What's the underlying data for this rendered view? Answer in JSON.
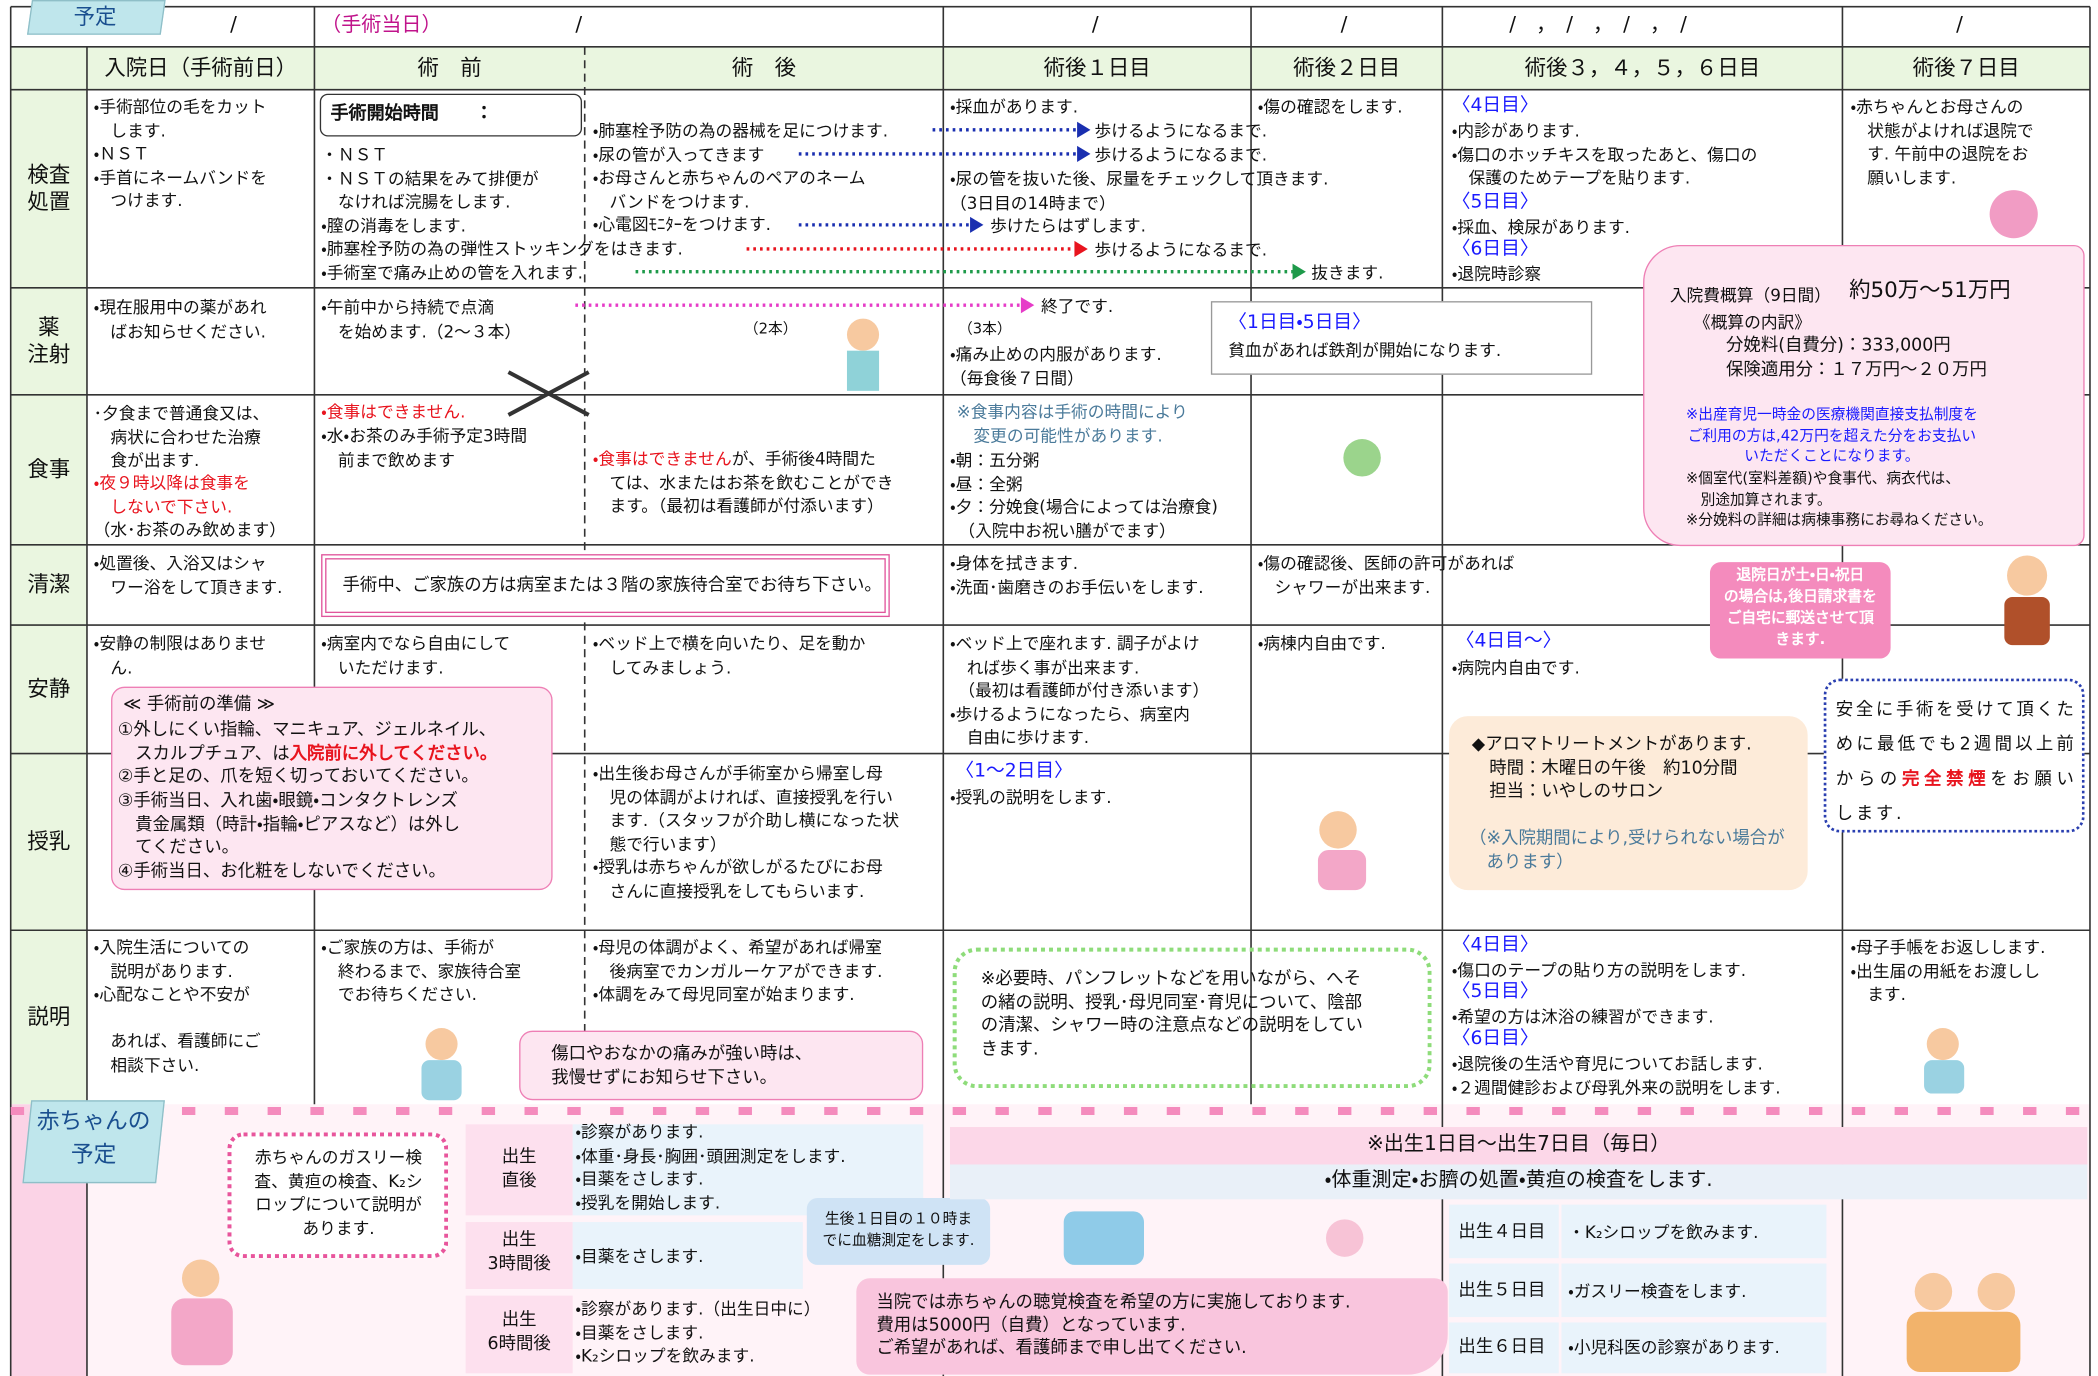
{
  "header": {
    "plan_tag": "予定",
    "dates": [
      "/",
      "（手術当日）",
      "/",
      "/",
      "/",
      "/　，　/　，　/　，　/",
      "/"
    ],
    "columns": [
      "入院日（手術前日）",
      "術　前",
      "術　後",
      "術後１日目",
      "術後２日目",
      "術後３，４，５，６日目",
      "術後７日目"
    ]
  },
  "rows": [
    "検査\n処置",
    "薬\n注射",
    "食事",
    "清潔",
    "安静",
    "授乳",
    "説明"
  ],
  "exam": [
    "・手術部位の毛をカット\n　します.\n・ＮＳＴ\n・手首にネームバンドを\n　つけます.",
    "手術開始時間　　：",
    "・ＮＳＴ\n・ＮＳＴの結果をみて排便が\n　なければ浣腸をします.\n・膣の消毒をします.\n・肺塞栓予防の為の弾性ストッキングをはきます.\n・手術室で痛み止めの管を入れます.",
    "・肺塞栓予防の為の器械を足につけます.\n・尿の管が入ってきます\n・お母さんと赤ちゃんのペアのネーム\n　バンドをつけます.\n・心電図ﾓﾆﾀｰをつけます.",
    "・採血があります.",
    "・傷の確認をします.",
    "歩けるようになるまで.",
    "歩けるようになるまで.",
    "歩けたらはずします.",
    "歩けるようになるまで.",
    "抜きます.",
    "・尿の管を抜いた後、尿量をチェックして頂きます.\n（3日目の14時まで）",
    "〈4日目〉",
    "・内診があります.\n・傷口のホッチキスを取ったあと、傷口の\n　保護のためテープを貼ります.",
    "〈5日目〉",
    "・採血、検尿があります.",
    "〈6日目〉",
    "・退院時診察",
    "・赤ちゃんとお母さんの\n　状態がよければ退院で\n　す. 午前中の退院をお\n　願いします."
  ],
  "med": [
    "・現在服用中の薬があれ\n　ばお知らせください.",
    "・午前中から持続で点滴\n　を始めます.（2～３本）",
    "（2本）",
    "終了です.",
    "（3本）",
    "・痛み止めの内服があります.\n（毎食後７日間）",
    "〈1日目・5日目〉",
    "貧血があれば鉄剤が開始になります."
  ],
  "meal": [
    "･夕食まで普通食又は、\n　病状に合わせた治療\n　食が出ます.",
    "・夜９時以降は食事を\n　しないで下さい.",
    "（水･お茶のみ飲めます）",
    "・食事はできません.",
    "・水・お茶のみ手術予定3時間\n　前まで飲めます",
    "・食事はできません",
    "が、手術後4時間た\n　ては、水またはお茶を飲むことができ\n　ます。（最初は看護師が付添います）",
    "※食事内容は手術の時間により\n　変更の可能性があります.",
    "・朝：五分粥\n・昼：全粥\n・夕：分娩食(場合によっては治療食)\n　（入院中お祝い膳がでます）"
  ],
  "hygiene": [
    "・処置後、入浴又はシャ\n　ワー浴をして頂きます.",
    "手術中、ご家族の方は病室または３階の家族待合室でお待ち下さい。",
    "・身体を拭きます.\n・洗面･歯磨きのお手伝いをします.",
    "・傷の確認後、医師の許可があれば\n　シャワーが出来ます."
  ],
  "rest": [
    "・安静の制限はありませ\n　ん.",
    "・病室内でなら自由にして\n　いただけます.",
    "・ベッド上で横を向いたり、足を動か\n　してみましょう.",
    "・ベッド上で座れます. 調子がよけ\n　れば歩く事が出来ます.\n　（最初は看護師が付き添います）\n・歩けるようになったら、病室内\n　自由に歩けます.",
    "・病棟内自由です.",
    "〈4日目～〉",
    "・病院内自由です."
  ],
  "feeding": [
    "・出生後お母さんが手術室から帰室し母\n　児の体調がよければ、直接授乳を行い\n　ます.（スタッフが介助し横になった状\n　態で行います）\n・授乳は赤ちゃんが欲しがるたびにお母\n　さんに直接授乳をしてもらいます.",
    "〈1～2日目〉",
    "・授乳の説明をします."
  ],
  "explain": [
    "・入院生活についての\n　説明があります.\n・心配なことや不安が\n\n　あれば、看護師にご\n　相談下さい.",
    "・ご家族の方は、手術が\n　終わるまで、家族待合室\n　でお待ちください.",
    "・母児の体調がよく、希望があれば帰室\n　後病室でカンガルーケアができます.\n・体調をみて母児同室が始まります.",
    "傷口やおなかの痛みが強い時は、\n我慢せずにお知らせ下さい。",
    "※必要時、パンフレットなどを用いながら、へそ\nの緒の説明、授乳･母児同室･育児について、陰部\nの清潔、シャワー時の注意点などの説明をしてい\nきます.",
    "〈4日目〉",
    "・傷口のテープの貼り方の説明をします.",
    "〈5日目〉",
    "・希望の方は沐浴の練習ができます.",
    "〈6日目〉",
    "・退院後の生活や育児についてお話します.\n・２週間健診および母乳外来の説明をします.",
    "・母子手帳をお返しします.\n・出生届の用紙をお渡しし\n　ます."
  ],
  "prep_note": {
    "title": "≪ 手術前の準備 ≫",
    "items": [
      "①外しにくい指輪、マニキュア、ジェルネイル、\n　スカルプチュア、は",
      "②手と足の、爪を短く切っておいてください。",
      "③手術当日、入れ歯・眼鏡・コンタクトレンズ\n　貴金属類（時計・指輪・ピアスなど）は外し\n　てください。",
      "④手術当日、お化粧をしないでください。"
    ],
    "emphasis": "入院前に外してください。"
  },
  "aroma": {
    "text": "◆アロマトリートメントがあります.\n　時間：木曜日の午後　約10分間\n　担当：いやしのサロン",
    "note": "（※入院期間により,受けられない場合が\n　あります）"
  },
  "smoking": {
    "text1": "安全に手術を受けて頂くために最低でも2週間以上前からの",
    "emphasis": "完全禁煙",
    "text2": "をお願いします."
  },
  "cost": {
    "title": "入院費概算（9日間）",
    "amount": "約50万～51万円",
    "breakdown": "《概算の内訳》",
    "delivery": "分娩料(自費分)：333,000円",
    "insurance": "保険適用分：１７万円～２０万円",
    "notice": "※出産育児一時金の医療機関直接支払制度を\nご利用の方は,42万円を超えた分をお支払い\nいただくことになります。",
    "extra": "※個室代(室料差額)や食事代、病衣代は、\n　別途加算されます。\n※分娩料の詳細は病棟事務にお尋ねください。"
  },
  "discharge_note": "退院日が土・日・祝日\nの場合は,後日請求書を\nご自宅に郵送させて頂\nきます.",
  "baby": {
    "label": "赤ちゃんの\n予定",
    "explain": "赤ちゃんのガスリー検\n査、黄疸の検査、K₂シ\nロップについて説明が\nあります.",
    "times": [
      "出生\n直後",
      "出生\n3時間後",
      "出生\n6時間後"
    ],
    "tasks": [
      "・診察があります.\n・体重･身長･胸囲･頭囲測定をします.\n・目薬をさします.\n・授乳を開始します.",
      "・目薬をさします.",
      "・診察があります.（出生日中に）\n・目薬をさします.\n・K₂シロップを飲みます."
    ],
    "glucose": "生後１日目の１０時ま\nでに血糖測定をします.",
    "daily_title": "※出生1日目～出生7日目（毎日）",
    "daily": "・体重測定・お臍の処置・黄疸の検査をします.",
    "hearing": "当院では赤ちゃんの聴覚検査を希望の方に実施しております.\n費用は5000円（自費）となっています.\nご希望があれば、看護師まで申し出てください.",
    "days": [
      "出生４日目",
      "出生５日目",
      "出生６日目"
    ],
    "day_tasks": [
      "・K₂シロップを飲みます.",
      "・ガスリー検査をします.",
      "・小児科医の診察があります."
    ]
  }
}
